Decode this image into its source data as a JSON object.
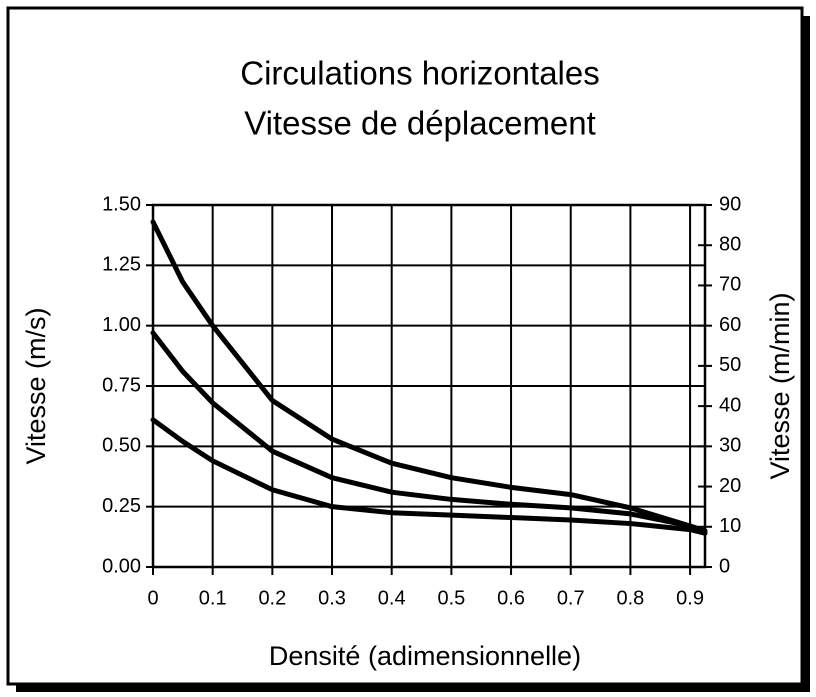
{
  "chart_data": {
    "type": "line",
    "title": "Circulations horizontales",
    "subtitle": "Vitesse de déplacement",
    "xlabel": "Densité (adimensionnelle)",
    "ylabel": "Vitesse (m/s)",
    "y2label": "Vitesse (m/min)",
    "x": [
      0,
      0.05,
      0.1,
      0.2,
      0.3,
      0.4,
      0.5,
      0.6,
      0.7,
      0.8,
      0.9,
      0.925
    ],
    "series": [
      {
        "color": "#000000",
        "values": [
          1.43,
          1.18,
          1.0,
          0.69,
          0.53,
          0.43,
          0.37,
          0.33,
          0.3,
          0.245,
          0.17,
          0.14
        ]
      },
      {
        "color": "#000000",
        "values": [
          0.97,
          0.81,
          0.68,
          0.48,
          0.37,
          0.31,
          0.28,
          0.26,
          0.245,
          0.22,
          0.17,
          0.15
        ]
      },
      {
        "color": "#000000",
        "values": [
          0.61,
          0.52,
          0.44,
          0.32,
          0.25,
          0.225,
          0.215,
          0.205,
          0.195,
          0.18,
          0.155,
          0.14
        ]
      }
    ],
    "xlim": [
      0,
      0.925
    ],
    "xticks": [
      0,
      0.1,
      0.2,
      0.3,
      0.4,
      0.5,
      0.6,
      0.7,
      0.8,
      0.9
    ],
    "ylim": [
      0,
      1.5
    ],
    "yticks": [
      {
        "value": 0,
        "label": "0.00"
      },
      0.25,
      {
        "value": 0.5,
        "label": "0.50"
      },
      0.75,
      {
        "value": 1,
        "label": "1.00"
      },
      1.25,
      {
        "value": 1.5,
        "label": "1.50"
      }
    ],
    "y2lim": [
      0,
      90
    ],
    "y2ticks": [
      0,
      10,
      20,
      30,
      40,
      50,
      60,
      70,
      80,
      90
    ],
    "grid": true
  }
}
